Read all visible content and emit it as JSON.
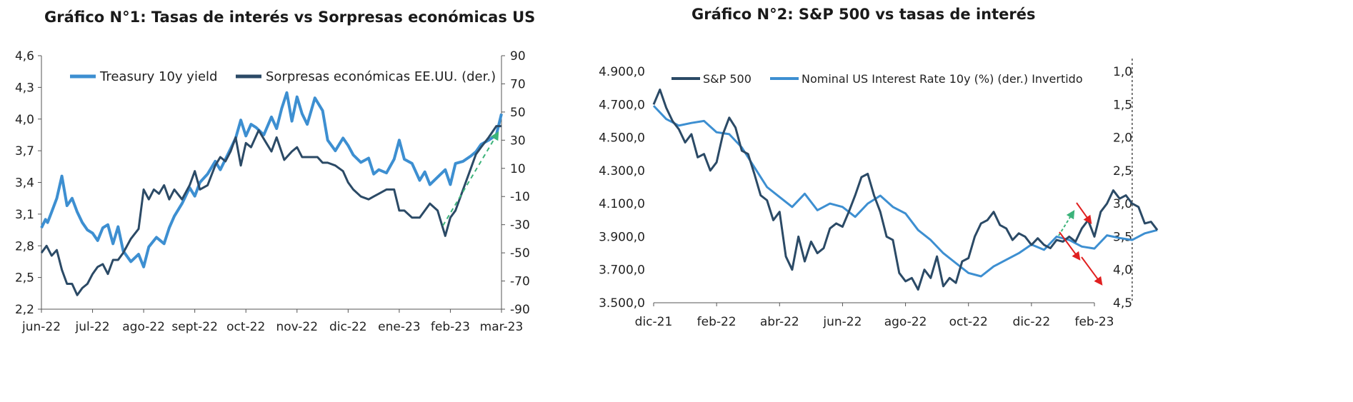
{
  "chart_data": [
    {
      "type": "line",
      "title": "Gráfico N°1: Tasas de interés vs Sorpresas económicas US",
      "x_tick_labels": [
        "jun-22",
        "jul-22",
        "ago-22",
        "sept-22",
        "oct-22",
        "nov-22",
        "dic-22",
        "ene-23",
        "feb-23",
        "mar-23"
      ],
      "y_left": {
        "ticks": [
          "4,6",
          "4,3",
          "4,0",
          "3,7",
          "3,4",
          "3,1",
          "2,8",
          "2,5",
          "2,2"
        ],
        "ylim": [
          2.2,
          4.6
        ]
      },
      "y_right": {
        "ticks": [
          "90",
          "70",
          "50",
          "30",
          "10",
          "-10",
          "-30",
          "-50",
          "-70",
          "-90"
        ],
        "ylim": [
          -90,
          90
        ]
      },
      "legend": {
        "placement": "top",
        "entries": [
          "Treasury 10y yield",
          "Sorpresas económicas EE.UU. (der.)"
        ]
      },
      "series": [
        {
          "name": "Treasury 10y yield",
          "axis": "left",
          "color": "#3d8fd1",
          "x": [
            0,
            0.08,
            0.12,
            0.2,
            0.3,
            0.4,
            0.5,
            0.6,
            0.7,
            0.8,
            0.9,
            1.0,
            1.1,
            1.2,
            1.3,
            1.4,
            1.5,
            1.6,
            1.75,
            1.9,
            2.0,
            2.1,
            2.25,
            2.4,
            2.5,
            2.6,
            2.75,
            2.9,
            3.0,
            3.1,
            3.25,
            3.4,
            3.5,
            3.6,
            3.7,
            3.8,
            3.9,
            4.0,
            4.1,
            4.2,
            4.35,
            4.5,
            4.6,
            4.7,
            4.8,
            4.9,
            5.0,
            5.1,
            5.2,
            5.35,
            5.5,
            5.6,
            5.75,
            5.9,
            6.0,
            6.1,
            6.25,
            6.4,
            6.5,
            6.6,
            6.75,
            6.9,
            7.0,
            7.1,
            7.25,
            7.4,
            7.5,
            7.6,
            7.75,
            7.9,
            8.0,
            8.1,
            8.25,
            8.4,
            8.5,
            8.6,
            8.75,
            8.9,
            9.0
          ],
          "values": [
            2.97,
            3.05,
            3.02,
            3.12,
            3.25,
            3.46,
            3.18,
            3.25,
            3.12,
            3.02,
            2.95,
            2.92,
            2.85,
            2.97,
            3.0,
            2.82,
            2.98,
            2.75,
            2.65,
            2.72,
            2.6,
            2.79,
            2.88,
            2.82,
            2.97,
            3.08,
            3.2,
            3.35,
            3.27,
            3.4,
            3.48,
            3.6,
            3.52,
            3.62,
            3.72,
            3.82,
            3.99,
            3.84,
            3.95,
            3.92,
            3.85,
            4.02,
            3.91,
            4.1,
            4.25,
            3.98,
            4.21,
            4.05,
            3.95,
            4.2,
            4.08,
            3.8,
            3.7,
            3.82,
            3.75,
            3.66,
            3.59,
            3.63,
            3.48,
            3.52,
            3.49,
            3.62,
            3.8,
            3.62,
            3.58,
            3.42,
            3.5,
            3.38,
            3.45,
            3.52,
            3.38,
            3.58,
            3.6,
            3.65,
            3.69,
            3.76,
            3.8,
            3.85,
            4.05
          ]
        },
        {
          "name": "Sorpresas económicas EE.UU. (der.)",
          "axis": "right",
          "color": "#2b4a66",
          "x": [
            0,
            0.1,
            0.2,
            0.3,
            0.4,
            0.5,
            0.6,
            0.7,
            0.8,
            0.9,
            1.0,
            1.1,
            1.2,
            1.3,
            1.4,
            1.5,
            1.6,
            1.75,
            1.9,
            2.0,
            2.1,
            2.2,
            2.3,
            2.4,
            2.5,
            2.6,
            2.75,
            2.9,
            3.0,
            3.1,
            3.25,
            3.4,
            3.5,
            3.6,
            3.7,
            3.8,
            3.9,
            4.0,
            4.1,
            4.25,
            4.4,
            4.5,
            4.6,
            4.75,
            4.9,
            5.0,
            5.1,
            5.25,
            5.4,
            5.5,
            5.6,
            5.75,
            5.9,
            6.0,
            6.1,
            6.25,
            6.4,
            6.5,
            6.6,
            6.75,
            6.9,
            7.0,
            7.1,
            7.25,
            7.4,
            7.5,
            7.6,
            7.75,
            7.9,
            8.0,
            8.1,
            8.25,
            8.4,
            8.5,
            8.6,
            8.75,
            8.9,
            9.0
          ],
          "values": [
            -50,
            -45,
            -52,
            -48,
            -62,
            -72,
            -72,
            -80,
            -75,
            -72,
            -65,
            -60,
            -58,
            -65,
            -55,
            -55,
            -50,
            -40,
            -33,
            -5,
            -12,
            -5,
            -8,
            -2,
            -12,
            -5,
            -12,
            -2,
            8,
            -5,
            -2,
            12,
            18,
            15,
            22,
            32,
            12,
            28,
            25,
            37,
            28,
            22,
            32,
            16,
            22,
            25,
            18,
            18,
            18,
            14,
            14,
            12,
            8,
            0,
            -5,
            -10,
            -12,
            -10,
            -8,
            -5,
            -5,
            -20,
            -20,
            -25,
            -25,
            -20,
            -15,
            -20,
            -38,
            -25,
            -20,
            -5,
            10,
            20,
            25,
            32,
            40,
            40
          ]
        }
      ],
      "annotations": [
        {
          "type": "arrow",
          "style": "dashed",
          "color": "#3cb37a"
        }
      ]
    },
    {
      "type": "line",
      "title": "Gráfico N°2: S&P 500 vs tasas de interés",
      "x_tick_labels": [
        "dic-21",
        "feb-22",
        "abr-22",
        "jun-22",
        "ago-22",
        "oct-22",
        "dic-22",
        "feb-23"
      ],
      "y_left": {
        "ticks": [
          "4.900,0",
          "4.700,0",
          "4.500,0",
          "4.300,0",
          "4.100,0",
          "3.900,0",
          "3.700,0",
          "3.500,0"
        ],
        "ylim": [
          3500,
          4900
        ]
      },
      "y_right": {
        "ticks": [
          "1,0",
          "1,5",
          "2,0",
          "2,5",
          "3,0",
          "3,5",
          "4,0",
          "4,5"
        ],
        "ylim": [
          1.0,
          4.5
        ],
        "inverted": true
      },
      "legend": {
        "placement": "top",
        "entries": [
          "S&P 500",
          "Nominal US Interest Rate 10y (%) (der.) Invertido"
        ]
      },
      "series": [
        {
          "name": "S&P 500",
          "axis": "left",
          "color": "#2b4a66",
          "x": [
            0,
            0.1,
            0.2,
            0.3,
            0.4,
            0.5,
            0.6,
            0.7,
            0.8,
            0.9,
            1.0,
            1.1,
            1.2,
            1.3,
            1.4,
            1.5,
            1.6,
            1.7,
            1.8,
            1.9,
            2.0,
            2.1,
            2.2,
            2.3,
            2.4,
            2.5,
            2.6,
            2.7,
            2.8,
            2.9,
            3.0,
            3.1,
            3.2,
            3.3,
            3.4,
            3.5,
            3.6,
            3.7,
            3.8,
            3.9,
            4.0,
            4.1,
            4.2,
            4.3,
            4.4,
            4.5,
            4.6,
            4.7,
            4.8,
            4.9,
            5.0,
            5.1,
            5.2,
            5.3,
            5.4,
            5.5,
            5.6,
            5.7,
            5.8,
            5.9,
            6.0,
            6.1,
            6.2,
            6.3,
            6.4,
            6.5,
            6.6,
            6.7,
            6.8,
            6.9,
            7.0,
            7.1,
            7.2,
            7.3,
            7.4,
            7.5,
            7.6,
            7.7,
            7.8,
            7.9,
            8.0
          ],
          "values": [
            4700,
            4790,
            4680,
            4600,
            4550,
            4470,
            4520,
            4380,
            4400,
            4300,
            4350,
            4520,
            4620,
            4560,
            4420,
            4400,
            4280,
            4150,
            4120,
            4000,
            4050,
            3780,
            3700,
            3900,
            3750,
            3870,
            3800,
            3830,
            3950,
            3980,
            3960,
            4050,
            4150,
            4260,
            4280,
            4150,
            4050,
            3900,
            3880,
            3680,
            3630,
            3650,
            3580,
            3700,
            3650,
            3780,
            3600,
            3650,
            3620,
            3750,
            3770,
            3900,
            3980,
            4000,
            4050,
            3970,
            3950,
            3880,
            3920,
            3900,
            3850,
            3890,
            3850,
            3830,
            3880,
            3870,
            3900,
            3870,
            3950,
            4000,
            3900,
            4050,
            4100,
            4180,
            4130,
            4150,
            4100,
            4080,
            3980,
            3990,
            3940
          ]
        },
        {
          "name": "Nominal US Interest Rate 10y (%) (der.) Invertido",
          "axis": "right",
          "color": "#3d8fd1",
          "x": [
            0,
            0.2,
            0.4,
            0.6,
            0.8,
            1.0,
            1.2,
            1.4,
            1.6,
            1.8,
            2.0,
            2.2,
            2.4,
            2.6,
            2.8,
            3.0,
            3.2,
            3.4,
            3.6,
            3.8,
            4.0,
            4.2,
            4.4,
            4.6,
            4.8,
            5.0,
            5.2,
            5.4,
            5.6,
            5.8,
            6.0,
            6.2,
            6.4,
            6.6,
            6.8,
            7.0,
            7.2,
            7.4,
            7.6,
            7.8,
            8.0
          ],
          "values": [
            1.52,
            1.72,
            1.82,
            1.78,
            1.75,
            1.92,
            1.95,
            2.15,
            2.45,
            2.75,
            2.9,
            3.05,
            2.85,
            3.1,
            3.0,
            3.05,
            3.2,
            3.0,
            2.88,
            3.05,
            3.15,
            3.4,
            3.55,
            3.75,
            3.9,
            4.05,
            4.1,
            3.95,
            3.85,
            3.75,
            3.62,
            3.7,
            3.5,
            3.55,
            3.65,
            3.68,
            3.48,
            3.52,
            3.55,
            3.45,
            3.4
          ]
        }
      ],
      "annotations": [
        {
          "type": "vline",
          "style": "dotted"
        },
        {
          "type": "arrow",
          "color": "#3cb37a"
        },
        {
          "type": "arrow",
          "color": "#e02020"
        },
        {
          "type": "arrow",
          "color": "#e02020"
        },
        {
          "type": "arrow",
          "color": "#e02020"
        }
      ]
    }
  ]
}
